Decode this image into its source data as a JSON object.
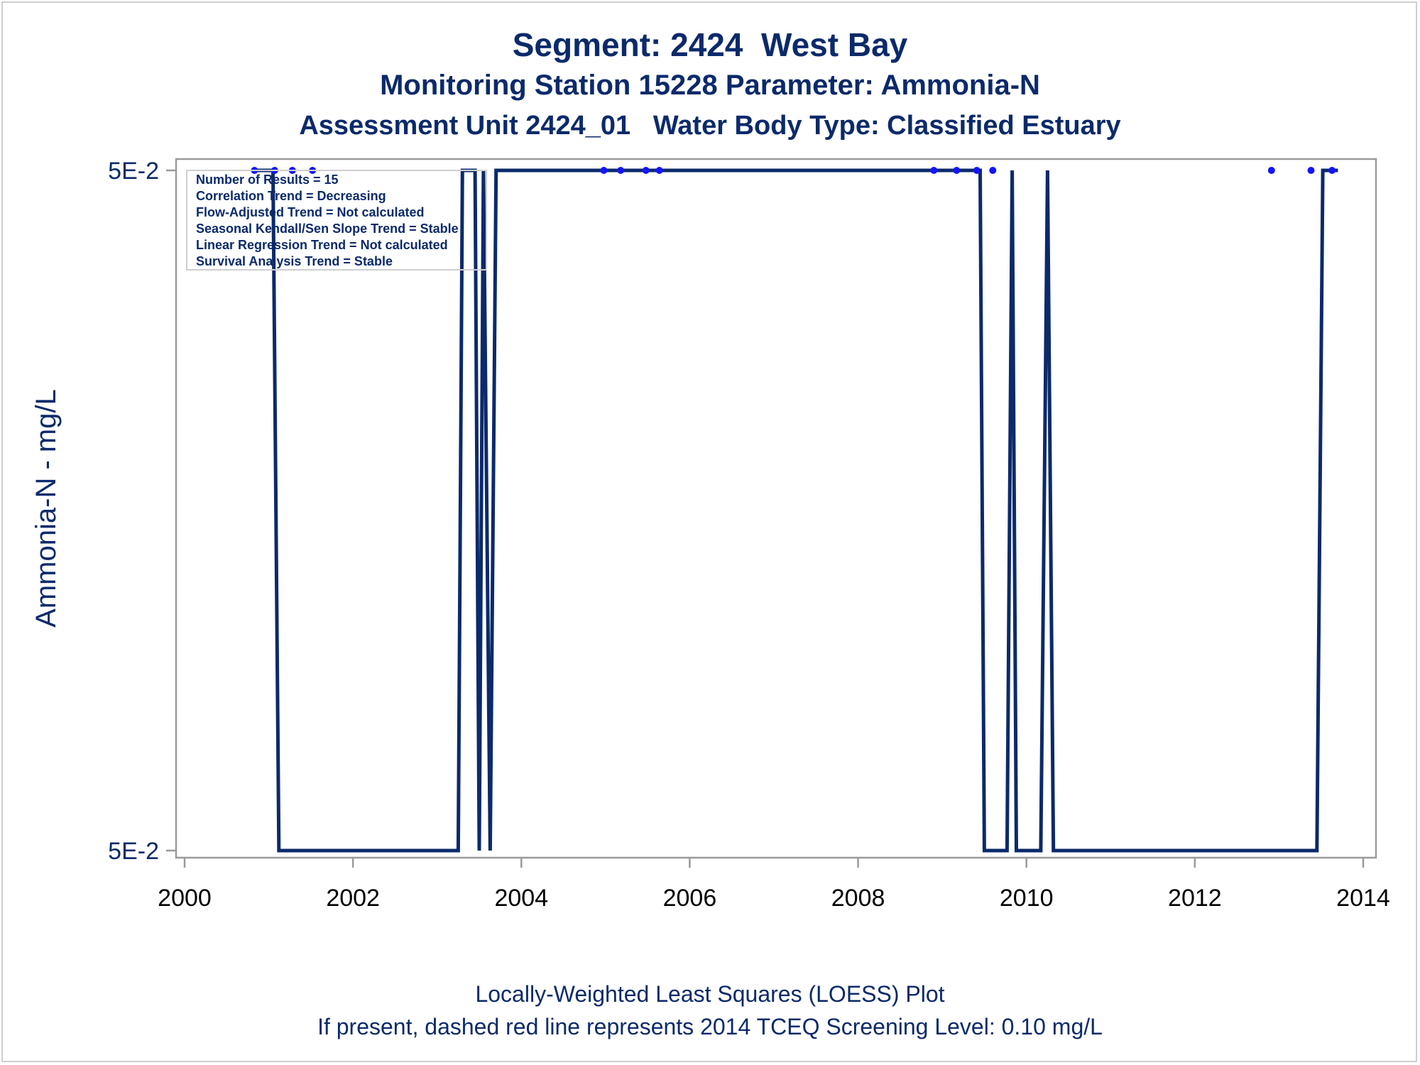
{
  "chart_data": {
    "type": "line",
    "title": "Segment: 2424  West Bay",
    "subtitle": "Monitoring Station 15228 Parameter: Ammonia-N",
    "subtitle2": "Assessment Unit 2424_01   Water Body Type: Classified Estuary",
    "xlabel": "",
    "ylabel": "Ammonia-N - mg/L",
    "footnote1": "Locally-Weighted Least Squares (LOESS) Plot",
    "footnote2": "If present, dashed red line represents 2014 TCEQ Screening Level: 0.10 mg/L",
    "xlim": [
      2000,
      2014
    ],
    "x_ticks": [
      2000,
      2002,
      2004,
      2006,
      2008,
      2010,
      2012,
      2014
    ],
    "x_tick_labels": [
      "2000",
      "2002",
      "2004",
      "2006",
      "2008",
      "2010",
      "2012",
      "2014"
    ],
    "y_ticks": [
      {
        "label": "5E-2",
        "level": 1
      },
      {
        "label": "5E-2",
        "level": 0
      }
    ],
    "grid": false,
    "series": [
      {
        "kind": "loess-line",
        "color": "#0b2a6b",
        "points": [
          [
            2000.8,
            1
          ],
          [
            2001.05,
            1
          ],
          [
            2001.12,
            0
          ],
          [
            2003.25,
            0
          ],
          [
            2003.3,
            1
          ],
          [
            2003.45,
            1
          ],
          [
            2003.5,
            0
          ],
          [
            2003.55,
            1
          ],
          [
            2003.63,
            0
          ],
          [
            2003.7,
            1
          ],
          [
            2009.45,
            1
          ],
          [
            2009.5,
            0
          ],
          [
            2009.77,
            0
          ],
          [
            2009.83,
            1
          ],
          [
            2009.88,
            0
          ],
          [
            2010.17,
            0
          ],
          [
            2010.25,
            1
          ],
          [
            2010.32,
            0
          ],
          [
            2013.45,
            0
          ],
          [
            2013.52,
            1
          ],
          [
            2013.7,
            1
          ]
        ]
      },
      {
        "kind": "observations",
        "color": "#1414ff",
        "x": [
          2000.83,
          2001.07,
          2001.28,
          2001.52,
          2004.98,
          2005.18,
          2005.48,
          2005.64,
          2008.9,
          2009.17,
          2009.41,
          2009.6,
          2012.91,
          2013.38,
          2013.63
        ],
        "y": [
          1,
          1,
          1,
          1,
          1,
          1,
          1,
          1,
          1,
          1,
          1,
          1,
          1,
          1,
          1
        ]
      }
    ],
    "annotation_box": {
      "position": "top-left",
      "lines": [
        "Number of Results = 15",
        "Correlation Trend = Decreasing",
        "Flow-Adjusted Trend = Not calculated",
        "Seasonal Kendall/Sen Slope Trend = Stable",
        "Linear Regression Trend = Not calculated",
        "Survival Analysis Trend = Stable"
      ]
    }
  },
  "colors": {
    "text": "#0b2a6b",
    "line": "#0b2a6b",
    "points": "#1414ff",
    "axis": "#9a9a9a"
  }
}
